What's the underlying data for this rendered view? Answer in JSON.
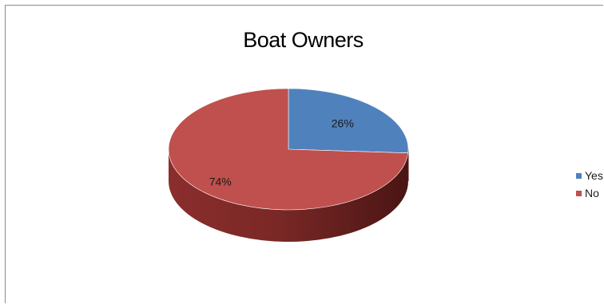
{
  "chart_data": {
    "type": "pie",
    "title": "Boat Owners",
    "three_d": true,
    "legend_position": "right",
    "categories": [
      "Yes",
      "No"
    ],
    "values": [
      26,
      74
    ],
    "data_labels": [
      "26%",
      "74%"
    ],
    "colors": [
      "#4f81bd",
      "#c0504d"
    ]
  }
}
